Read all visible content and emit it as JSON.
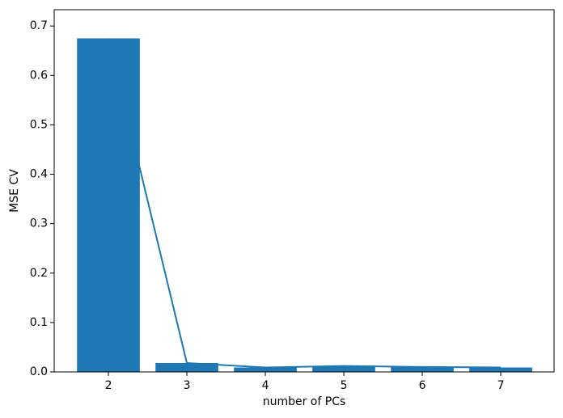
{
  "chart_data": {
    "type": "bar",
    "xlabel": "number of PCs",
    "ylabel": "MSE CV",
    "x": [
      2,
      3,
      4,
      5,
      6,
      7
    ],
    "values": [
      0.675,
      0.018,
      0.009,
      0.012,
      0.01,
      0.009
    ],
    "color": "#1f77b4",
    "line": true,
    "xlim": [
      1.309,
      7.68
    ],
    "xticks": [
      2,
      3,
      4,
      5,
      6,
      7
    ],
    "ylim": [
      0,
      0.733
    ],
    "yticks": [
      {
        "value": 0,
        "label": "0.0"
      },
      0.1,
      0.2,
      0.3,
      0.4,
      0.5,
      0.6,
      0.7
    ]
  }
}
